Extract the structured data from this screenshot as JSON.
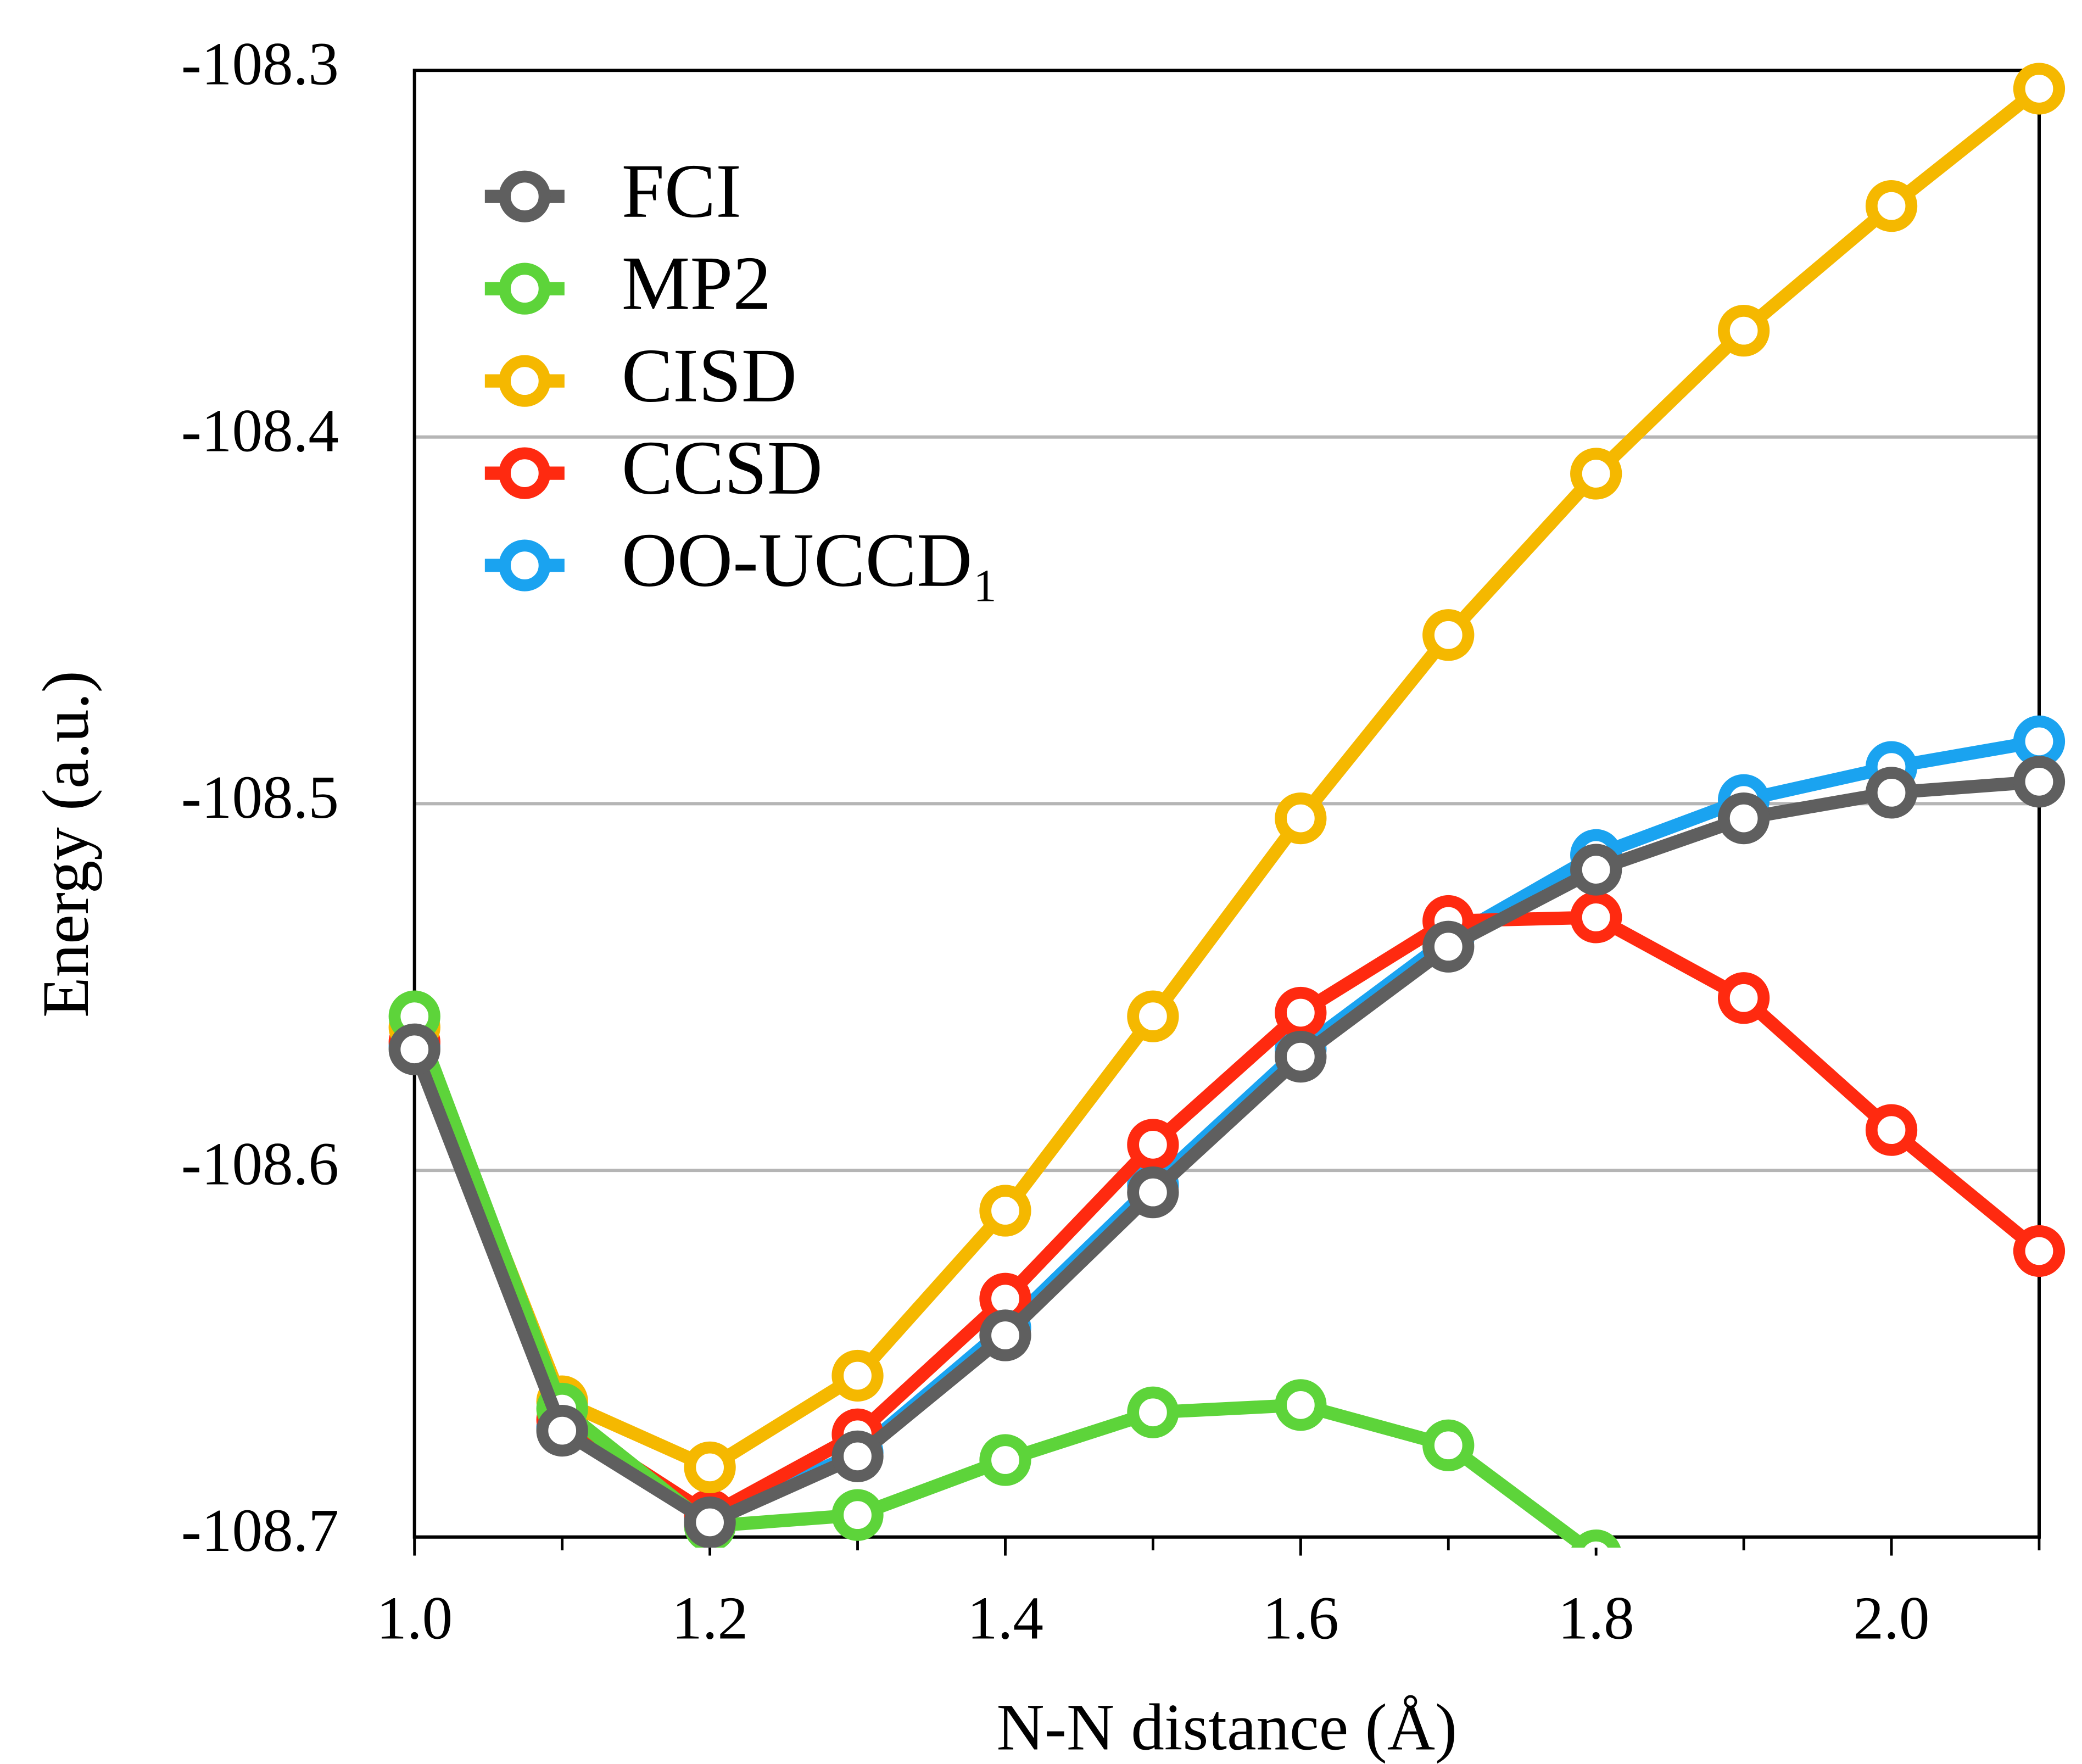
{
  "chart_data": {
    "type": "line",
    "xlabel": "N-N distance (Å)",
    "ylabel": "Energy (a.u.)",
    "x": [
      1.0,
      1.1,
      1.2,
      1.3,
      1.4,
      1.5,
      1.6,
      1.7,
      1.8,
      1.9,
      2.0,
      2.1
    ],
    "xlim": [
      1.0,
      2.1
    ],
    "xticks": [
      {
        "value": 1.0,
        "label": "1.0"
      },
      {
        "value": 1.2,
        "label": "1.2"
      },
      {
        "value": 1.4,
        "label": "1.4"
      },
      {
        "value": 1.6,
        "label": "1.6"
      },
      {
        "value": 1.8,
        "label": "1.8"
      },
      {
        "value": 2.0,
        "label": "2.0"
      }
    ],
    "ylim": [
      -108.7,
      -108.3
    ],
    "yticks": [
      -108.7,
      -108.6,
      -108.5,
      -108.4,
      -108.3
    ],
    "grid": true,
    "legend": "upper left",
    "series": [
      {
        "name": "FCI",
        "color": "#5f5f5f",
        "values": [
          -108.567,
          -108.671,
          -108.696,
          -108.678,
          -108.645,
          -108.606,
          -108.569,
          -108.539,
          -108.518,
          -108.504,
          -108.497,
          -108.494
        ]
      },
      {
        "name": "MP2",
        "color": "#5dd43a",
        "values": [
          -108.558,
          -108.665,
          -108.697,
          -108.694,
          -108.679,
          -108.666,
          -108.664,
          -108.675,
          -108.705,
          null,
          null,
          null
        ]
      },
      {
        "name": "CISD",
        "color": "#f5b800",
        "values": [
          -108.561,
          -108.663,
          -108.681,
          -108.656,
          -108.611,
          -108.558,
          -108.504,
          -108.454,
          -108.41,
          -108.371,
          -108.337,
          -108.305
        ]
      },
      {
        "name": "CCSD",
        "color": "#ff2a10",
        "values": [
          -108.565,
          -108.668,
          -108.694,
          -108.672,
          -108.635,
          -108.593,
          -108.557,
          -108.532,
          -108.531,
          -108.553,
          -108.589,
          -108.622
        ]
      },
      {
        "name": "OO-UCCD₁",
        "color": "#1aa3f0",
        "values": [
          -108.566,
          -108.67,
          -108.695,
          -108.677,
          -108.643,
          -108.604,
          -108.567,
          -108.537,
          -108.514,
          -108.499,
          -108.49,
          -108.483
        ]
      }
    ]
  }
}
